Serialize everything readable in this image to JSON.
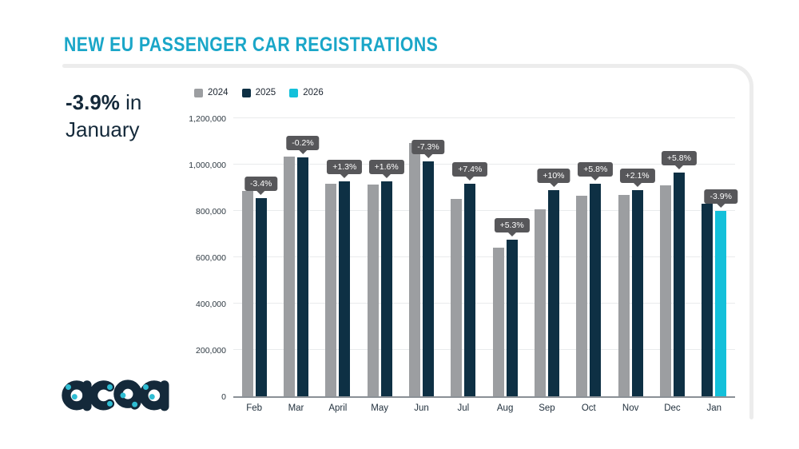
{
  "page": {
    "title": "NEW EU PASSENGER CAR REGISTRATIONS"
  },
  "highlight": {
    "bold": "-3.9%",
    "rest": " in January"
  },
  "legend": [
    {
      "label": "2024",
      "color": "#9c9ea1"
    },
    {
      "label": "2025",
      "color": "#0e3044"
    },
    {
      "label": "2026",
      "color": "#13c0da"
    }
  ],
  "logo": {
    "text": "acea",
    "navy": "#14293a",
    "dot_color": "#2fbdd3"
  },
  "colors": {
    "title_teal": "#1aa6c8",
    "gray_2024": "#9c9ea1",
    "navy_2025": "#0e3044",
    "cyan_2026": "#13c0da",
    "tooltip_bg": "#57575a",
    "text_dark": "#14293a"
  },
  "chart_data": {
    "type": "bar",
    "title": "NEW EU PASSENGER CAR REGISTRATIONS",
    "xlabel": "",
    "ylabel": "",
    "ylim": [
      0,
      1200000
    ],
    "yticks": [
      0,
      200000,
      400000,
      600000,
      800000,
      1000000,
      1200000
    ],
    "grid": true,
    "legend_position": "top-left",
    "series_colors": {
      "2024": "#9c9ea1",
      "2025": "#0e3044",
      "2026": "#13c0da"
    },
    "months": [
      {
        "label": "Feb",
        "change": "-3.4%",
        "bars": [
          {
            "series": "2024",
            "value": 886000
          },
          {
            "series": "2025",
            "value": 855000
          }
        ]
      },
      {
        "label": "Mar",
        "change": "-0.2%",
        "bars": [
          {
            "series": "2024",
            "value": 1034000
          },
          {
            "series": "2025",
            "value": 1032000
          }
        ]
      },
      {
        "label": "April",
        "change": "+1.3%",
        "bars": [
          {
            "series": "2024",
            "value": 916000
          },
          {
            "series": "2025",
            "value": 928000
          }
        ]
      },
      {
        "label": "May",
        "change": "+1.6%",
        "bars": [
          {
            "series": "2024",
            "value": 913000
          },
          {
            "series": "2025",
            "value": 928000
          }
        ]
      },
      {
        "label": "Jun",
        "change": "-7.3%",
        "bars": [
          {
            "series": "2024",
            "value": 1092000
          },
          {
            "series": "2025",
            "value": 1013000
          }
        ]
      },
      {
        "label": "Jul",
        "change": "+7.4%",
        "bars": [
          {
            "series": "2024",
            "value": 853000
          },
          {
            "series": "2025",
            "value": 916000
          }
        ]
      },
      {
        "label": "Aug",
        "change": "+5.3%",
        "bars": [
          {
            "series": "2024",
            "value": 643000
          },
          {
            "series": "2025",
            "value": 677000
          }
        ]
      },
      {
        "label": "Sep",
        "change": "+10%",
        "bars": [
          {
            "series": "2024",
            "value": 808000
          },
          {
            "series": "2025",
            "value": 889000
          }
        ]
      },
      {
        "label": "Oct",
        "change": "+5.8%",
        "bars": [
          {
            "series": "2024",
            "value": 867000
          },
          {
            "series": "2025",
            "value": 917000
          }
        ]
      },
      {
        "label": "Nov",
        "change": "+2.1%",
        "bars": [
          {
            "series": "2024",
            "value": 870000
          },
          {
            "series": "2025",
            "value": 888000
          }
        ]
      },
      {
        "label": "Dec",
        "change": "+5.8%",
        "bars": [
          {
            "series": "2024",
            "value": 912000
          },
          {
            "series": "2025",
            "value": 965000
          }
        ]
      },
      {
        "label": "Jan",
        "change": "-3.9%",
        "bars": [
          {
            "series": "2025",
            "value": 832000
          },
          {
            "series": "2026",
            "value": 799000
          }
        ]
      }
    ]
  }
}
